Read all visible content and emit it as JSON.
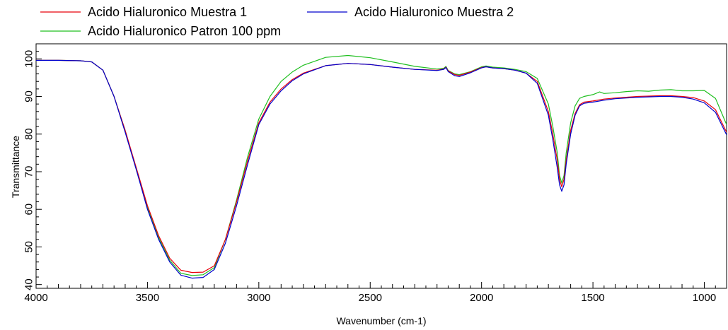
{
  "chart_data": {
    "type": "line",
    "title": "",
    "xlabel": "Wavenumber (cm-1)",
    "ylabel": "Transmittance",
    "xlim": [
      4000,
      900
    ],
    "ylim": [
      39,
      104
    ],
    "x_reversed": true,
    "grid": false,
    "legend_position": "top",
    "x_ticks": [
      4000,
      3500,
      3000,
      2500,
      2000,
      1500,
      1000
    ],
    "y_ticks": [
      40,
      50,
      60,
      70,
      80,
      90,
      100
    ],
    "series": [
      {
        "name": "Acido Hialuronico Muestra 1",
        "color": "#e8000b",
        "x": [
          4000,
          3900,
          3800,
          3750,
          3700,
          3650,
          3600,
          3550,
          3500,
          3450,
          3400,
          3350,
          3300,
          3250,
          3200,
          3150,
          3100,
          3050,
          3000,
          2950,
          2900,
          2850,
          2800,
          2700,
          2600,
          2500,
          2400,
          2300,
          2200,
          2170,
          2160,
          2150,
          2120,
          2100,
          2050,
          2000,
          1980,
          1950,
          1900,
          1850,
          1800,
          1750,
          1700,
          1680,
          1660,
          1650,
          1640,
          1630,
          1620,
          1600,
          1580,
          1560,
          1540,
          1500,
          1450,
          1400,
          1350,
          1300,
          1250,
          1200,
          1150,
          1100,
          1050,
          1000,
          950,
          900
        ],
        "values": [
          99.6,
          99.6,
          99.5,
          99.2,
          97,
          90,
          81,
          71,
          61,
          53,
          47,
          43.8,
          43.2,
          43.3,
          45,
          52,
          62,
          73,
          83,
          88.5,
          92,
          94.5,
          96.2,
          98.2,
          98.8,
          98.5,
          97.8,
          97.2,
          97,
          97.3,
          97.8,
          96.8,
          95.8,
          95.6,
          96.5,
          97.7,
          97.9,
          97.6,
          97.4,
          97,
          96.2,
          94,
          86,
          80,
          73,
          68,
          66,
          68,
          73,
          81,
          85.5,
          87.8,
          88.5,
          88.8,
          89.3,
          89.6,
          89.8,
          90,
          90.1,
          90.2,
          90.2,
          90,
          89.7,
          88.8,
          86.5,
          80.5
        ]
      },
      {
        "name": "Acido Hialuronico Muestra 2",
        "color": "#0000cc",
        "x": [
          4000,
          3900,
          3800,
          3750,
          3700,
          3650,
          3600,
          3550,
          3500,
          3450,
          3400,
          3350,
          3300,
          3250,
          3200,
          3150,
          3100,
          3050,
          3000,
          2950,
          2900,
          2850,
          2800,
          2700,
          2600,
          2500,
          2400,
          2300,
          2200,
          2170,
          2160,
          2150,
          2120,
          2100,
          2050,
          2000,
          1980,
          1950,
          1900,
          1850,
          1800,
          1750,
          1700,
          1680,
          1660,
          1650,
          1640,
          1630,
          1620,
          1600,
          1580,
          1560,
          1540,
          1500,
          1450,
          1400,
          1350,
          1300,
          1250,
          1200,
          1150,
          1100,
          1050,
          1000,
          950,
          900
        ],
        "values": [
          99.6,
          99.6,
          99.5,
          99.2,
          97,
          90,
          80.5,
          70.5,
          60,
          52,
          46,
          42.5,
          41.7,
          41.9,
          44,
          51,
          61,
          72,
          82.5,
          88,
          91.5,
          94.2,
          96,
          98.2,
          98.8,
          98.5,
          97.8,
          97.2,
          96.9,
          97.2,
          97.7,
          96.6,
          95.5,
          95.3,
          96.3,
          97.6,
          97.9,
          97.6,
          97.4,
          97,
          96.2,
          93.5,
          85,
          78.5,
          71,
          66.5,
          64.8,
          66.5,
          72,
          80,
          85,
          87.5,
          88.2,
          88.5,
          89,
          89.4,
          89.6,
          89.8,
          89.9,
          90,
          90,
          89.8,
          89.3,
          88.3,
          85.8,
          79.8
        ]
      },
      {
        "name": "Acido Hialuronico Patron 100 ppm",
        "color": "#1fbf1f",
        "x": [
          4000,
          3900,
          3800,
          3750,
          3700,
          3650,
          3600,
          3550,
          3500,
          3450,
          3400,
          3350,
          3300,
          3250,
          3200,
          3150,
          3100,
          3050,
          3000,
          2950,
          2900,
          2850,
          2800,
          2700,
          2600,
          2500,
          2400,
          2300,
          2200,
          2170,
          2160,
          2150,
          2120,
          2100,
          2050,
          2000,
          1980,
          1950,
          1900,
          1850,
          1800,
          1750,
          1700,
          1680,
          1660,
          1650,
          1640,
          1630,
          1620,
          1600,
          1580,
          1560,
          1540,
          1500,
          1470,
          1450,
          1400,
          1350,
          1300,
          1250,
          1200,
          1150,
          1100,
          1050,
          1000,
          950,
          900
        ],
        "values": [
          99.6,
          99.6,
          99.5,
          99.2,
          97,
          90,
          81,
          70.5,
          60.5,
          52.5,
          46.5,
          43,
          42.4,
          42.6,
          44.5,
          52,
          62.5,
          74,
          84,
          90,
          94,
          96.5,
          98.3,
          100.4,
          100.9,
          100.3,
          99.2,
          98,
          97.3,
          97.5,
          98,
          96.9,
          96,
          95.8,
          96.6,
          97.9,
          98.1,
          97.8,
          97.6,
          97.2,
          96.6,
          94.8,
          88,
          82,
          75,
          69,
          67,
          69,
          75,
          83,
          87.5,
          89.5,
          90,
          90.5,
          91.2,
          90.8,
          91,
          91.3,
          91.5,
          91.4,
          91.7,
          91.8,
          91.5,
          91.5,
          91.6,
          89.5,
          82.5
        ]
      }
    ]
  }
}
